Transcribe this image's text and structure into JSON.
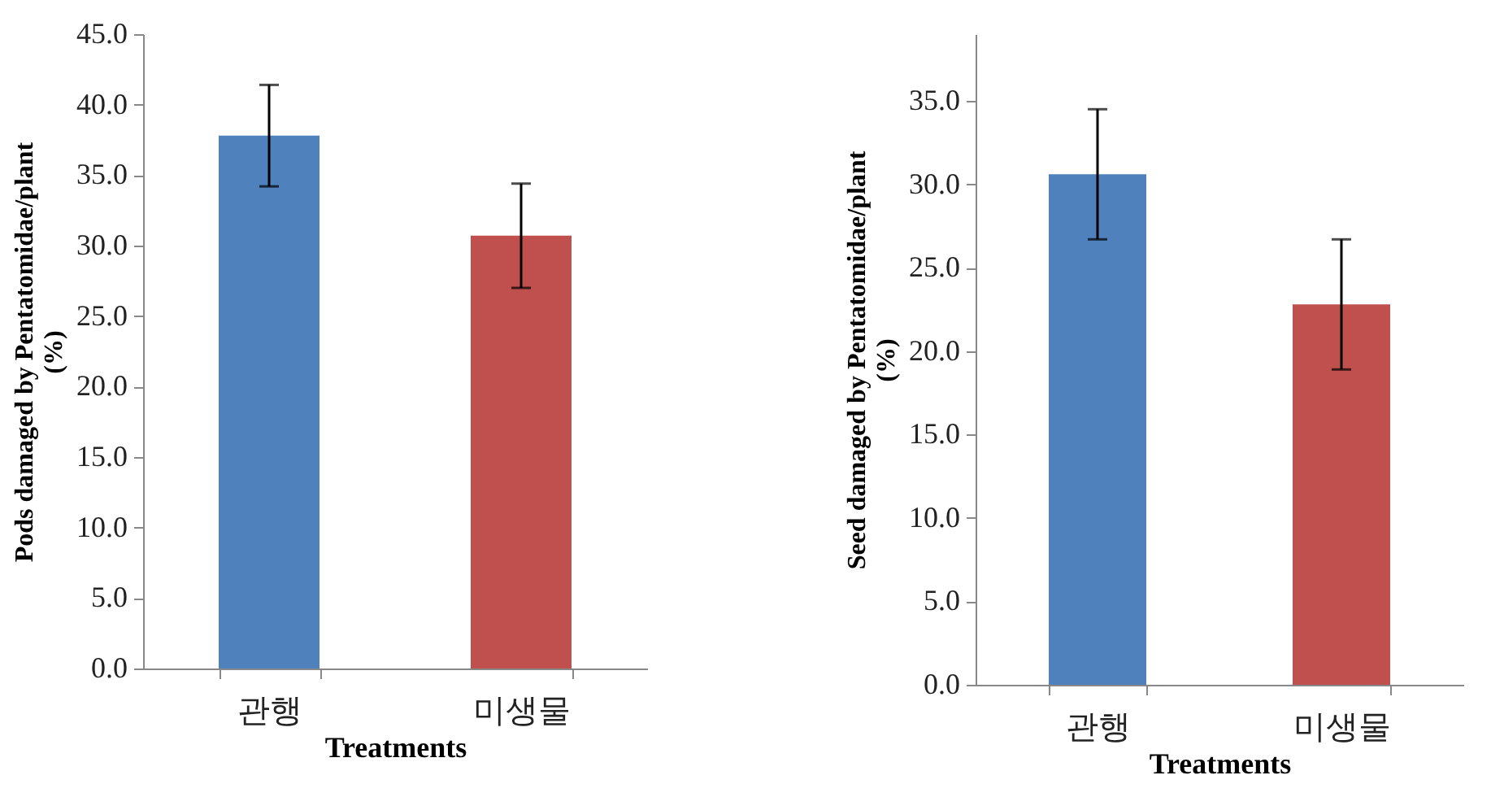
{
  "chart_data": [
    {
      "type": "bar",
      "categories": [
        "관행",
        "미생물"
      ],
      "colors": [
        "#4f81bd",
        "#c0504d"
      ],
      "values": [
        37.8,
        30.7
      ],
      "errors": [
        3.6,
        3.7
      ],
      "xlabel": "Treatments",
      "ylabel": "Pods damaged by Pentatomidae/plant (%)",
      "ylim": [
        0,
        45
      ],
      "yticks": [
        {
          "value": 0,
          "label": "0.0"
        },
        {
          "value": 5,
          "label": "5.0"
        },
        {
          "value": 10,
          "label": "10.0"
        },
        {
          "value": 15,
          "label": "15.0"
        },
        {
          "value": 20,
          "label": "20.0"
        },
        {
          "value": 25,
          "label": "25.0"
        },
        {
          "value": 30,
          "label": "30.0"
        },
        {
          "value": 35,
          "label": "35.0"
        },
        {
          "value": 40,
          "label": "40.0"
        },
        {
          "value": 45,
          "label": "45.0"
        }
      ],
      "grid": false
    },
    {
      "type": "bar",
      "categories": [
        "관행",
        "미생물"
      ],
      "colors": [
        "#4f81bd",
        "#c0504d"
      ],
      "values": [
        30.6,
        22.8
      ],
      "errors": [
        3.9,
        3.9
      ],
      "xlabel": "Treatments",
      "ylabel": "Seed damaged by Pentatomidae/plant (%)",
      "ylim": [
        0,
        39
      ],
      "yticks": [
        {
          "value": 0,
          "label": "0.0"
        },
        {
          "value": 5,
          "label": "5.0"
        },
        {
          "value": 10,
          "label": "10.0"
        },
        {
          "value": 15,
          "label": "15.0"
        },
        {
          "value": 20,
          "label": "20.0"
        },
        {
          "value": 25,
          "label": "25.0"
        },
        {
          "value": 30,
          "label": "30.0"
        },
        {
          "value": 35,
          "label": "35.0"
        }
      ],
      "grid": false
    }
  ]
}
